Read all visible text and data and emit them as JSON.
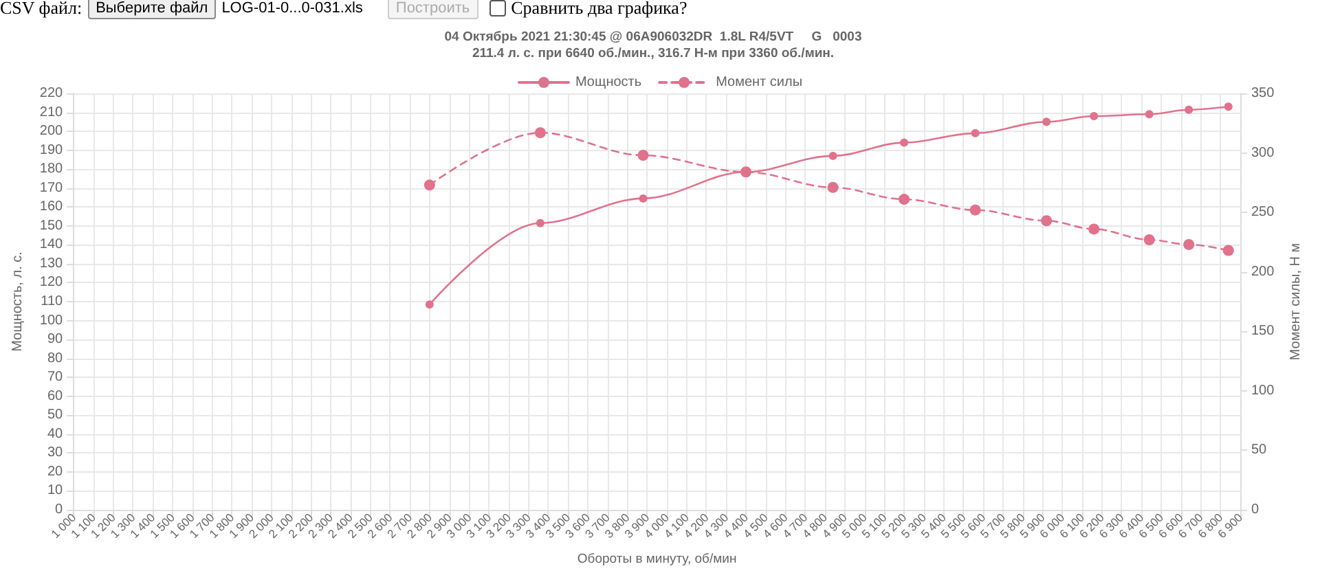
{
  "chart_data": {
    "type": "line",
    "title": "04 Октябрь 2021 21:30:45 @ 06A906032DR  1.8L R4/5VT     G   0003",
    "subtitle": "211.4 л. с. при 6640 об./мин., 316.7 Н-м при 3360 об./мин.",
    "xlabel": "Обороты в минуту, об/мин",
    "ylabel": "Мощность, л. с.",
    "y2label": "Момент силы, Н м",
    "annotations": [
      "CSV файл:",
      "Выберите файл",
      "LOG-01-0...0-031.xls",
      "Построить",
      "Сравнить два графика?"
    ],
    "x": [
      2800,
      3360,
      3880,
      4400,
      4840,
      5200,
      5560,
      5920,
      6160,
      6440,
      6640,
      6840
    ],
    "series": [
      {
        "name": "Мощность",
        "color": "#e0728c",
        "line_style": "solid",
        "values": [
          108.5,
          151.5,
          164.5,
          178.5,
          187,
          194,
          199,
          205,
          208,
          209,
          211.4,
          213
        ]
      },
      {
        "name": "Момент силы",
        "color": "#e0728c",
        "line_style": "dashed",
        "axis": "y2",
        "values": [
          273,
          317,
          298,
          284,
          271,
          261,
          252,
          243,
          236,
          227,
          223,
          218
        ]
      }
    ],
    "xlim": [
      1000,
      6900
    ],
    "xticks": [
      {
        "value": 1000,
        "label": "1 000"
      },
      {
        "value": 1100,
        "label": "1 100"
      },
      {
        "value": 1200,
        "label": "1 200"
      },
      {
        "value": 1300,
        "label": "1 300"
      },
      {
        "value": 1400,
        "label": "1 400"
      },
      {
        "value": 1500,
        "label": "1 500"
      },
      {
        "value": 1600,
        "label": "1 600"
      },
      {
        "value": 1700,
        "label": "1 700"
      },
      {
        "value": 1800,
        "label": "1 800"
      },
      {
        "value": 1900,
        "label": "1 900"
      },
      {
        "value": 2000,
        "label": "2 000"
      },
      {
        "value": 2100,
        "label": "2 100"
      },
      {
        "value": 2200,
        "label": "2 200"
      },
      {
        "value": 2300,
        "label": "2 300"
      },
      {
        "value": 2400,
        "label": "2 400"
      },
      {
        "value": 2500,
        "label": "2 500"
      },
      {
        "value": 2600,
        "label": "2 600"
      },
      {
        "value": 2700,
        "label": "2 700"
      },
      {
        "value": 2800,
        "label": "2 800"
      },
      {
        "value": 2900,
        "label": "2 900"
      },
      {
        "value": 3000,
        "label": "3 000"
      },
      {
        "value": 3100,
        "label": "3 100"
      },
      {
        "value": 3200,
        "label": "3 200"
      },
      {
        "value": 3300,
        "label": "3 300"
      },
      {
        "value": 3400,
        "label": "3 400"
      },
      {
        "value": 3500,
        "label": "3 500"
      },
      {
        "value": 3600,
        "label": "3 600"
      },
      {
        "value": 3700,
        "label": "3 700"
      },
      {
        "value": 3800,
        "label": "3 800"
      },
      {
        "value": 3900,
        "label": "3 900"
      },
      {
        "value": 4000,
        "label": "4 000"
      },
      {
        "value": 4100,
        "label": "4 100"
      },
      {
        "value": 4200,
        "label": "4 200"
      },
      {
        "value": 4300,
        "label": "4 300"
      },
      {
        "value": 4400,
        "label": "4 400"
      },
      {
        "value": 4500,
        "label": "4 500"
      },
      {
        "value": 4600,
        "label": "4 600"
      },
      {
        "value": 4700,
        "label": "4 700"
      },
      {
        "value": 4800,
        "label": "4 800"
      },
      {
        "value": 4900,
        "label": "4 900"
      },
      {
        "value": 5000,
        "label": "5 000"
      },
      {
        "value": 5100,
        "label": "5 100"
      },
      {
        "value": 5200,
        "label": "5 200"
      },
      {
        "value": 5300,
        "label": "5 300"
      },
      {
        "value": 5400,
        "label": "5 400"
      },
      {
        "value": 5500,
        "label": "5 500"
      },
      {
        "value": 5600,
        "label": "5 600"
      },
      {
        "value": 5700,
        "label": "5 700"
      },
      {
        "value": 5800,
        "label": "5 800"
      },
      {
        "value": 5900,
        "label": "5 900"
      },
      {
        "value": 6000,
        "label": "6 000"
      },
      {
        "value": 6100,
        "label": "6 100"
      },
      {
        "value": 6200,
        "label": "6 200"
      },
      {
        "value": 6300,
        "label": "6 300"
      },
      {
        "value": 6400,
        "label": "6 400"
      },
      {
        "value": 6500,
        "label": "6 500"
      },
      {
        "value": 6600,
        "label": "6 600"
      },
      {
        "value": 6700,
        "label": "6 700"
      },
      {
        "value": 6800,
        "label": "6 800"
      },
      {
        "value": 6900,
        "label": "6 900"
      }
    ],
    "ylim": [
      0,
      220
    ],
    "yticks": [
      0,
      10,
      20,
      30,
      40,
      50,
      60,
      70,
      80,
      90,
      100,
      110,
      120,
      130,
      140,
      150,
      160,
      170,
      180,
      190,
      200,
      210,
      220
    ],
    "y2lim": [
      0,
      350
    ],
    "y2ticks": [
      0,
      50,
      100,
      150,
      200,
      250,
      300,
      350
    ],
    "grid": true,
    "legend": "top",
    "marker": "circle"
  }
}
